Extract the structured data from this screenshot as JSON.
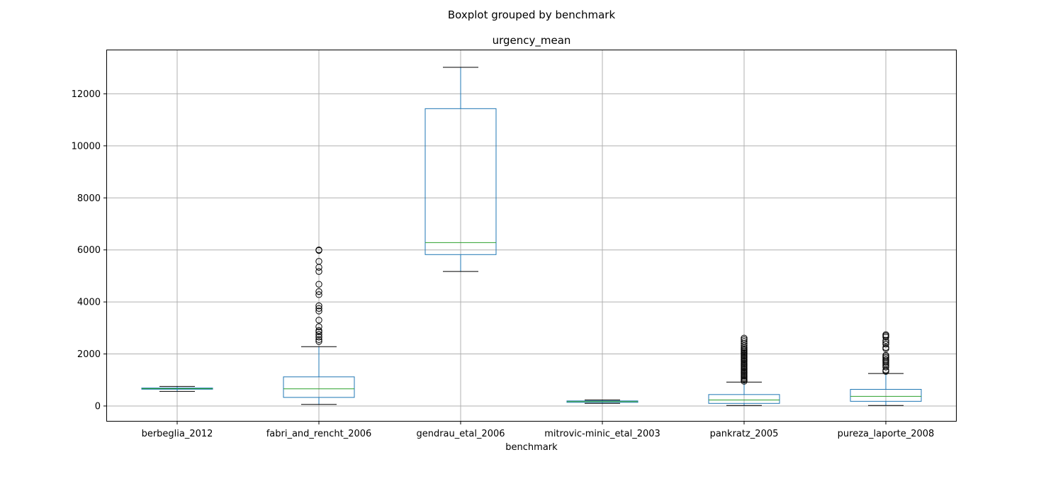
{
  "chart_data": {
    "type": "boxplot",
    "suptitle": "Boxplot grouped by benchmark",
    "title": "urgency_mean",
    "xlabel": "benchmark",
    "ylabel": "",
    "ylim": [
      -600,
      13700
    ],
    "yticks": [
      0,
      2000,
      4000,
      6000,
      8000,
      10000,
      12000
    ],
    "grid": true,
    "colors": {
      "box": "#1f77b4",
      "median": "#2ca02c",
      "whisker_cap": "#000000",
      "grid": "#b0b0b0",
      "flier": "#000000"
    },
    "categories": [
      "berbeglia_2012",
      "fabri_and_rencht_2006",
      "gendrau_etal_2006",
      "mitrovic-minic_etal_2003",
      "pankratz_2005",
      "pureza_laporte_2008"
    ],
    "boxes": [
      {
        "whislo": 560,
        "q1": 645,
        "med": 665,
        "q3": 690,
        "whishi": 750,
        "fliers": []
      },
      {
        "whislo": 60,
        "q1": 330,
        "med": 660,
        "q3": 1120,
        "whishi": 2280,
        "fliers": [
          2480,
          2550,
          2650,
          2750,
          2850,
          2900,
          3050,
          3300,
          3650,
          3750,
          3850,
          4280,
          4400,
          4680,
          5170,
          5330,
          5560,
          5980,
          6000
        ]
      },
      {
        "whislo": 5170,
        "q1": 5820,
        "med": 6280,
        "q3": 11430,
        "whishi": 13020,
        "fliers": []
      },
      {
        "whislo": 100,
        "q1": 140,
        "med": 170,
        "q3": 195,
        "whishi": 230,
        "fliers": []
      },
      {
        "whislo": 20,
        "q1": 100,
        "med": 230,
        "q3": 440,
        "whishi": 920,
        "fliers": [
          950,
          1000,
          1050,
          1100,
          1150,
          1200,
          1250,
          1300,
          1350,
          1400,
          1450,
          1500,
          1550,
          1600,
          1650,
          1700,
          1750,
          1800,
          1850,
          1900,
          1950,
          2000,
          2050,
          2100,
          2150,
          2200,
          2250,
          2320,
          2400,
          2480,
          2550,
          2610
        ]
      },
      {
        "whislo": 20,
        "q1": 180,
        "med": 370,
        "q3": 640,
        "whishi": 1250,
        "fliers": [
          1330,
          1380,
          1500,
          1560,
          1620,
          1680,
          1730,
          1780,
          1850,
          1900,
          1950,
          2200,
          2250,
          2380,
          2450,
          2520,
          2650,
          2700,
          2740
        ]
      }
    ]
  }
}
